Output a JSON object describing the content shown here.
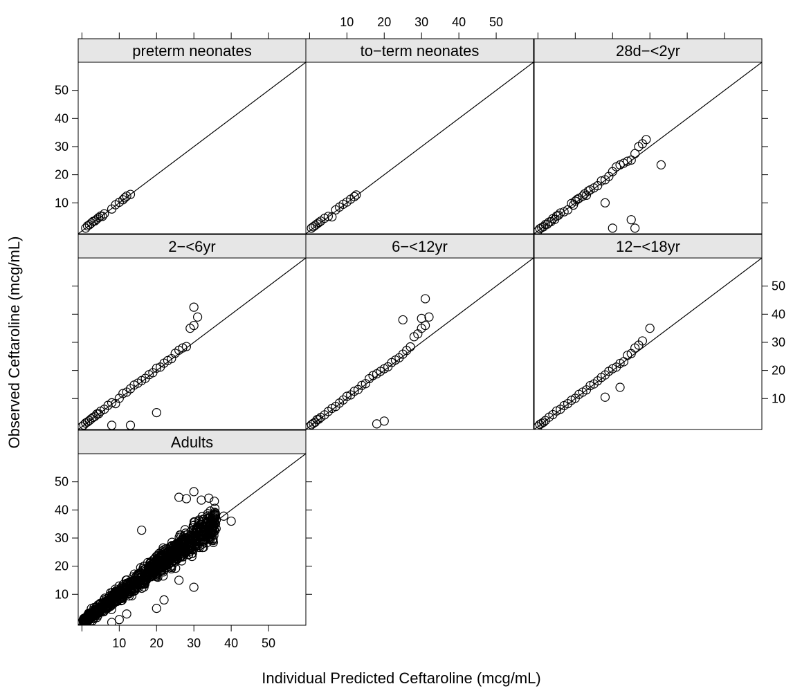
{
  "chart_data": {
    "type": "scatter",
    "xlabel": "Individual Predicted Ceftaroline (mcg/mL)",
    "ylabel": "Observed Ceftaroline (mcg/mL)",
    "xlim": [
      -1,
      60
    ],
    "ylim": [
      -1,
      60
    ],
    "x_ticks": [
      10,
      20,
      30,
      40,
      50
    ],
    "y_ticks": [
      10,
      20,
      30,
      40,
      50
    ],
    "reference_line": "y = x",
    "layout": "3x3 lattice",
    "colors": {
      "strip_fill": "#e6e6e6",
      "points": "#000000",
      "line": "#000000"
    },
    "panels": [
      {
        "label": "preterm neonates",
        "points": [
          [
            1,
            1
          ],
          [
            1.5,
            1.8
          ],
          [
            2,
            2.2
          ],
          [
            2.5,
            2.8
          ],
          [
            3,
            3.4
          ],
          [
            3.5,
            3.6
          ],
          [
            4,
            4.2
          ],
          [
            4.5,
            4.8
          ],
          [
            5,
            5.3
          ],
          [
            5.5,
            5.2
          ],
          [
            6,
            6.1
          ],
          [
            8,
            7.8
          ],
          [
            9,
            9.3
          ],
          [
            10,
            10.2
          ],
          [
            11,
            11.1
          ],
          [
            11.5,
            11.8
          ],
          [
            12,
            12.4
          ],
          [
            13,
            13
          ]
        ]
      },
      {
        "label": "to-term neonates",
        "points": [
          [
            0.5,
            1
          ],
          [
            1,
            1.5
          ],
          [
            1.5,
            2
          ],
          [
            2,
            2.5
          ],
          [
            2.5,
            3
          ],
          [
            3,
            3.5
          ],
          [
            4,
            4.5
          ],
          [
            5,
            5.2
          ],
          [
            6,
            5
          ],
          [
            7,
            7.5
          ],
          [
            8,
            8.5
          ],
          [
            9,
            9.5
          ],
          [
            10,
            10.3
          ],
          [
            11,
            11.3
          ],
          [
            12,
            12.2
          ],
          [
            12.5,
            12.8
          ]
        ]
      },
      {
        "label": "28d−<2yr",
        "points": [
          [
            0,
            0
          ],
          [
            0.5,
            0.8
          ],
          [
            1,
            1.2
          ],
          [
            1.5,
            1.5
          ],
          [
            2,
            2.3
          ],
          [
            2.5,
            2.4
          ],
          [
            3,
            3.2
          ],
          [
            3.5,
            3.3
          ],
          [
            4,
            4.4
          ],
          [
            4.5,
            4.1
          ],
          [
            5,
            5.3
          ],
          [
            5.5,
            5.6
          ],
          [
            6,
            6.4
          ],
          [
            7,
            6.8
          ],
          [
            8,
            7.5
          ],
          [
            9,
            9.8
          ],
          [
            9.5,
            9.2
          ],
          [
            10,
            10.6
          ],
          [
            10.5,
            11.2
          ],
          [
            11,
            11.6
          ],
          [
            12,
            12.4
          ],
          [
            12.5,
            13.2
          ],
          [
            13,
            12.7
          ],
          [
            13.5,
            14.2
          ],
          [
            14,
            14.6
          ],
          [
            15,
            15.3
          ],
          [
            16,
            16.1
          ],
          [
            17,
            17.8
          ],
          [
            18,
            18.2
          ],
          [
            19,
            19.4
          ],
          [
            20,
            21.1
          ],
          [
            21,
            22.8
          ],
          [
            22,
            23.5
          ],
          [
            23,
            24.1
          ],
          [
            24,
            24.8
          ],
          [
            25,
            25.2
          ],
          [
            26,
            27.5
          ],
          [
            27,
            30
          ],
          [
            28,
            31
          ],
          [
            29,
            32.5
          ],
          [
            33,
            23.5
          ],
          [
            18,
            10
          ],
          [
            25,
            4
          ],
          [
            26,
            1
          ],
          [
            20,
            1
          ]
        ]
      },
      {
        "label": "2−<6yr",
        "points": [
          [
            0,
            0
          ],
          [
            0.5,
            0.6
          ],
          [
            1,
            1.3
          ],
          [
            1.5,
            1.7
          ],
          [
            2,
            2.2
          ],
          [
            2.5,
            2.8
          ],
          [
            3,
            3.3
          ],
          [
            3.5,
            3.7
          ],
          [
            4,
            4.5
          ],
          [
            4.5,
            4.6
          ],
          [
            5,
            5.5
          ],
          [
            6,
            6.2
          ],
          [
            7,
            7.6
          ],
          [
            8,
            8.5
          ],
          [
            9,
            8.2
          ],
          [
            10,
            10.1
          ],
          [
            11,
            11.8
          ],
          [
            12,
            12.3
          ],
          [
            13,
            13.5
          ],
          [
            14,
            14.8
          ],
          [
            15,
            15.5
          ],
          [
            16,
            16.4
          ],
          [
            17,
            17.2
          ],
          [
            18,
            18.5
          ],
          [
            19,
            19.2
          ],
          [
            20,
            20.8
          ],
          [
            21,
            21.2
          ],
          [
            22,
            22.6
          ],
          [
            23,
            23.5
          ],
          [
            24,
            24.2
          ],
          [
            25,
            26.1
          ],
          [
            26,
            27.2
          ],
          [
            27,
            28
          ],
          [
            28,
            28.5
          ],
          [
            29,
            35
          ],
          [
            30,
            42.5
          ],
          [
            31,
            39
          ],
          [
            30,
            36
          ],
          [
            20,
            5
          ],
          [
            8,
            0.5
          ],
          [
            13,
            0.5
          ]
        ]
      },
      {
        "label": "6−<12yr",
        "points": [
          [
            0,
            0
          ],
          [
            0.5,
            0.7
          ],
          [
            1,
            1.2
          ],
          [
            1.5,
            1.6
          ],
          [
            2,
            2.5
          ],
          [
            2.5,
            2.7
          ],
          [
            3,
            3.3
          ],
          [
            4,
            4.2
          ],
          [
            5,
            5.4
          ],
          [
            6,
            6.5
          ],
          [
            7,
            7.2
          ],
          [
            8,
            8.4
          ],
          [
            9,
            9.5
          ],
          [
            10,
            10.8
          ],
          [
            11,
            11.3
          ],
          [
            12,
            12.6
          ],
          [
            13,
            13.2
          ],
          [
            14,
            14.7
          ],
          [
            15,
            15.3
          ],
          [
            16,
            17.1
          ],
          [
            17,
            18.2
          ],
          [
            18,
            18.8
          ],
          [
            19,
            19.7
          ],
          [
            20,
            20.6
          ],
          [
            21,
            21.3
          ],
          [
            22,
            22.8
          ],
          [
            23,
            23.7
          ],
          [
            24,
            24.5
          ],
          [
            25,
            25.8
          ],
          [
            26,
            27.1
          ],
          [
            27,
            28.4
          ],
          [
            28,
            32
          ],
          [
            29,
            33
          ],
          [
            30,
            35
          ],
          [
            31,
            36
          ],
          [
            30,
            38.5
          ],
          [
            32,
            39
          ],
          [
            31,
            45.5
          ],
          [
            25,
            38
          ],
          [
            18,
            1
          ],
          [
            20,
            2
          ]
        ]
      },
      {
        "label": "12−<18yr",
        "points": [
          [
            0,
            0
          ],
          [
            0.5,
            0.8
          ],
          [
            1,
            1.2
          ],
          [
            1.5,
            1.6
          ],
          [
            2,
            2.2
          ],
          [
            3,
            3.4
          ],
          [
            4,
            4.3
          ],
          [
            5,
            5.6
          ],
          [
            6,
            6.2
          ],
          [
            7,
            7.5
          ],
          [
            8,
            8.2
          ],
          [
            9,
            9.4
          ],
          [
            10,
            10.1
          ],
          [
            11,
            11.5
          ],
          [
            12,
            12.3
          ],
          [
            13,
            13.1
          ],
          [
            14,
            14.6
          ],
          [
            15,
            15.2
          ],
          [
            16,
            16.3
          ],
          [
            17,
            17.5
          ],
          [
            18,
            18.4
          ],
          [
            19,
            19.7
          ],
          [
            20,
            20.6
          ],
          [
            21,
            21.2
          ],
          [
            22,
            22.5
          ],
          [
            23,
            23.1
          ],
          [
            24,
            25.4
          ],
          [
            25,
            26
          ],
          [
            26,
            28
          ],
          [
            27,
            29
          ],
          [
            28,
            30.5
          ],
          [
            30,
            35
          ],
          [
            18,
            10.5
          ],
          [
            22,
            14
          ]
        ]
      },
      {
        "label": "Adults",
        "dense": true,
        "points": [
          [
            0,
            0
          ],
          [
            2,
            2.1
          ],
          [
            4,
            4.3
          ],
          [
            6,
            5.8
          ],
          [
            8,
            8.4
          ],
          [
            10,
            10.2
          ],
          [
            12,
            12.3
          ],
          [
            14,
            14.2
          ],
          [
            16,
            16.5
          ],
          [
            18,
            18.1
          ],
          [
            20,
            20.2
          ],
          [
            22,
            22.4
          ],
          [
            24,
            24.5
          ],
          [
            26,
            26.1
          ],
          [
            28,
            28.3
          ],
          [
            30,
            30.2
          ],
          [
            32,
            32.4
          ],
          [
            34,
            34.3
          ],
          [
            36,
            36.5
          ],
          [
            38,
            37.8
          ],
          [
            40,
            36
          ],
          [
            30,
            46.5
          ],
          [
            28,
            44
          ],
          [
            26,
            44.5
          ],
          [
            32,
            43.5
          ],
          [
            34,
            44.2
          ],
          [
            16,
            32.8
          ],
          [
            20,
            5
          ],
          [
            22,
            8
          ],
          [
            26,
            15
          ],
          [
            30,
            12.5
          ],
          [
            8,
            0
          ],
          [
            10,
            1
          ],
          [
            12,
            3
          ]
        ]
      }
    ],
    "panel_strip_labels": {
      "p1": "preterm neonates",
      "p2": "to−term neonates",
      "p3": "28d−<2yr",
      "p4": "2−<6yr",
      "p5": "6−<12yr",
      "p6": "12−<18yr",
      "p7": "Adults"
    }
  }
}
